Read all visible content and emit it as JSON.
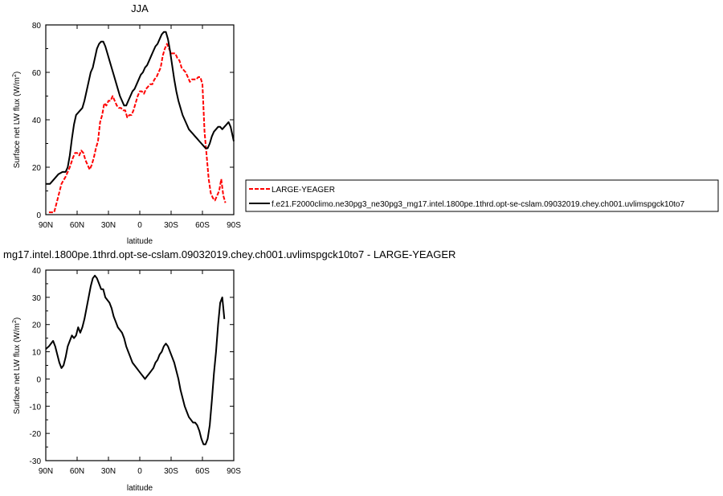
{
  "chart_data": [
    {
      "type": "line",
      "title": "JJA",
      "xlabel": "latitude",
      "ylabel": "Surface net LW flux (W/m²)",
      "ylabel_main": "Surface net LW flux (W/m",
      "ylabel_sup": "2",
      "ylabel_end": ")",
      "xlim": [
        90,
        -90
      ],
      "ylim": [
        0,
        80
      ],
      "xticks": [
        {
          "value": 90,
          "label": "90N"
        },
        {
          "value": 60,
          "label": "60N"
        },
        {
          "value": 30,
          "label": "30N"
        },
        {
          "value": 0,
          "label": "0"
        },
        {
          "value": -30,
          "label": "30S"
        },
        {
          "value": -60,
          "label": "60S"
        },
        {
          "value": -90,
          "label": "90S"
        }
      ],
      "yticks": [
        0,
        20,
        40,
        60,
        80
      ],
      "legend": "right",
      "series": [
        {
          "name": "LARGE-YEAGER",
          "color": "#ff0000",
          "dashed": true,
          "x": [
            87,
            82,
            79,
            75,
            71,
            67,
            64,
            62,
            60,
            58,
            56,
            54,
            52,
            50,
            48,
            46,
            44,
            42,
            40,
            38,
            36,
            34,
            32,
            30,
            28,
            26,
            24,
            22,
            20,
            18,
            16,
            14,
            12,
            10,
            8,
            6,
            4,
            2,
            0,
            -2,
            -4,
            -6,
            -8,
            -10,
            -12,
            -14,
            -16,
            -18,
            -20,
            -22,
            -24,
            -26,
            -28,
            -30,
            -32,
            -34,
            -36,
            -38,
            -40,
            -42,
            -44,
            -46,
            -48,
            -50,
            -52,
            -54,
            -56,
            -58,
            -60,
            -62,
            -64,
            -66,
            -68,
            -70,
            -72,
            -74,
            -76,
            -78,
            -80,
            -82
          ],
          "y": [
            1,
            1,
            6,
            13,
            16,
            20,
            24,
            26,
            26,
            25,
            27,
            26,
            23,
            21,
            19,
            21,
            24,
            28,
            31,
            39,
            42,
            47,
            46,
            48,
            48,
            50,
            48,
            46,
            45,
            45,
            44,
            44,
            41,
            42,
            42,
            44,
            47,
            50,
            52,
            52,
            51,
            53,
            54,
            55,
            55,
            57,
            58,
            60,
            62,
            67,
            70,
            72,
            70,
            68,
            68,
            68,
            66,
            65,
            62,
            61,
            60,
            58,
            56,
            57,
            57,
            57,
            58,
            58,
            55,
            35,
            25,
            15,
            9,
            7,
            6,
            8,
            10,
            15,
            8,
            5
          ]
        },
        {
          "name": "f.e21.F2000climo.ne30pg3_ne30pg3_mg17.intel.1800pe.1thrd.opt-se-cslam.09032019.chey.ch001.uvlimspgck10to7",
          "color": "#000000",
          "dashed": false,
          "x": [
            90,
            86,
            82,
            78,
            74,
            71,
            69,
            67,
            65,
            63,
            61,
            59,
            57,
            55,
            53,
            51,
            49,
            47,
            45,
            43,
            41,
            39,
            37,
            35,
            33,
            31,
            29,
            27,
            25,
            23,
            21,
            19,
            17,
            15,
            13,
            11,
            9,
            7,
            5,
            3,
            1,
            -1,
            -3,
            -5,
            -7,
            -9,
            -11,
            -13,
            -15,
            -17,
            -19,
            -21,
            -23,
            -25,
            -27,
            -29,
            -31,
            -33,
            -35,
            -37,
            -39,
            -41,
            -43,
            -45,
            -47,
            -49,
            -51,
            -53,
            -55,
            -57,
            -59,
            -61,
            -63,
            -65,
            -67,
            -69,
            -71,
            -73,
            -75,
            -77,
            -79,
            -81,
            -83,
            -85,
            -87,
            -90
          ],
          "y": [
            13,
            13,
            15,
            17,
            18,
            18,
            20,
            25,
            32,
            38,
            42,
            43,
            44,
            45,
            48,
            52,
            56,
            60,
            62,
            66,
            70,
            72,
            73,
            73,
            71,
            68,
            65,
            62,
            59,
            56,
            53,
            50,
            48,
            46,
            46,
            48,
            50,
            52,
            53,
            55,
            57,
            59,
            60,
            62,
            63,
            65,
            67,
            69,
            71,
            72,
            74,
            76,
            77,
            77,
            74,
            69,
            63,
            57,
            52,
            48,
            45,
            42,
            40,
            38,
            36,
            35,
            34,
            33,
            32,
            31,
            30,
            29,
            28,
            28,
            30,
            33,
            35,
            36,
            37,
            37,
            36,
            37,
            38,
            39,
            37,
            31
          ]
        }
      ]
    },
    {
      "type": "line",
      "title": "mg17.intel.1800pe.1thrd.opt-se-cslam.09032019.chey.ch001.uvlimspgck10to7 - LARGE-YEAGER",
      "xlabel": "latitude",
      "ylabel": "Surface net LW flux (W/m²)",
      "ylabel_main": "Surface net LW flux (W/m",
      "ylabel_sup": "2",
      "ylabel_end": ")",
      "xlim": [
        90,
        -90
      ],
      "ylim": [
        -30,
        40
      ],
      "xticks": [
        {
          "value": 90,
          "label": "90N"
        },
        {
          "value": 60,
          "label": "60N"
        },
        {
          "value": 30,
          "label": "30N"
        },
        {
          "value": 0,
          "label": "0"
        },
        {
          "value": -30,
          "label": "30S"
        },
        {
          "value": -60,
          "label": "60S"
        },
        {
          "value": -90,
          "label": "90S"
        }
      ],
      "yticks": [
        -30,
        -20,
        -10,
        0,
        10,
        20,
        30,
        40
      ],
      "series": [
        {
          "name": "",
          "color": "#000000",
          "dashed": false,
          "x": [
            90,
            87,
            85,
            83,
            81,
            79,
            77,
            75,
            73,
            71,
            69,
            67,
            65,
            63,
            61,
            59,
            57,
            55,
            53,
            51,
            49,
            47,
            45,
            43,
            41,
            39,
            37,
            35,
            33,
            31,
            29,
            27,
            25,
            23,
            21,
            19,
            17,
            15,
            13,
            11,
            9,
            7,
            5,
            3,
            1,
            -1,
            -3,
            -5,
            -7,
            -9,
            -11,
            -13,
            -15,
            -17,
            -19,
            -21,
            -23,
            -25,
            -27,
            -29,
            -31,
            -33,
            -35,
            -37,
            -39,
            -41,
            -43,
            -45,
            -47,
            -49,
            -51,
            -53,
            -55,
            -57,
            -59,
            -61,
            -63,
            -65,
            -67,
            -69,
            -71,
            -73,
            -75,
            -77,
            -79,
            -81
          ],
          "y": [
            11,
            12,
            13,
            14,
            12,
            9,
            6,
            4,
            5,
            8,
            12,
            14,
            16,
            15,
            16,
            19,
            17,
            19,
            22,
            26,
            30,
            34,
            37,
            38,
            37,
            35,
            33,
            33,
            30,
            29,
            28,
            26,
            23,
            21,
            19,
            18,
            17,
            15,
            12,
            10,
            8,
            6,
            5,
            4,
            3,
            2,
            1,
            0,
            1,
            2,
            3,
            4,
            6,
            7,
            9,
            10,
            12,
            13,
            12,
            10,
            8,
            6,
            3,
            0,
            -4,
            -7,
            -10,
            -12,
            -14,
            -15,
            -16,
            -16,
            -17,
            -19,
            -22,
            -24,
            -24,
            -22,
            -17,
            -8,
            2,
            10,
            20,
            28,
            30,
            22
          ]
        }
      ]
    }
  ]
}
